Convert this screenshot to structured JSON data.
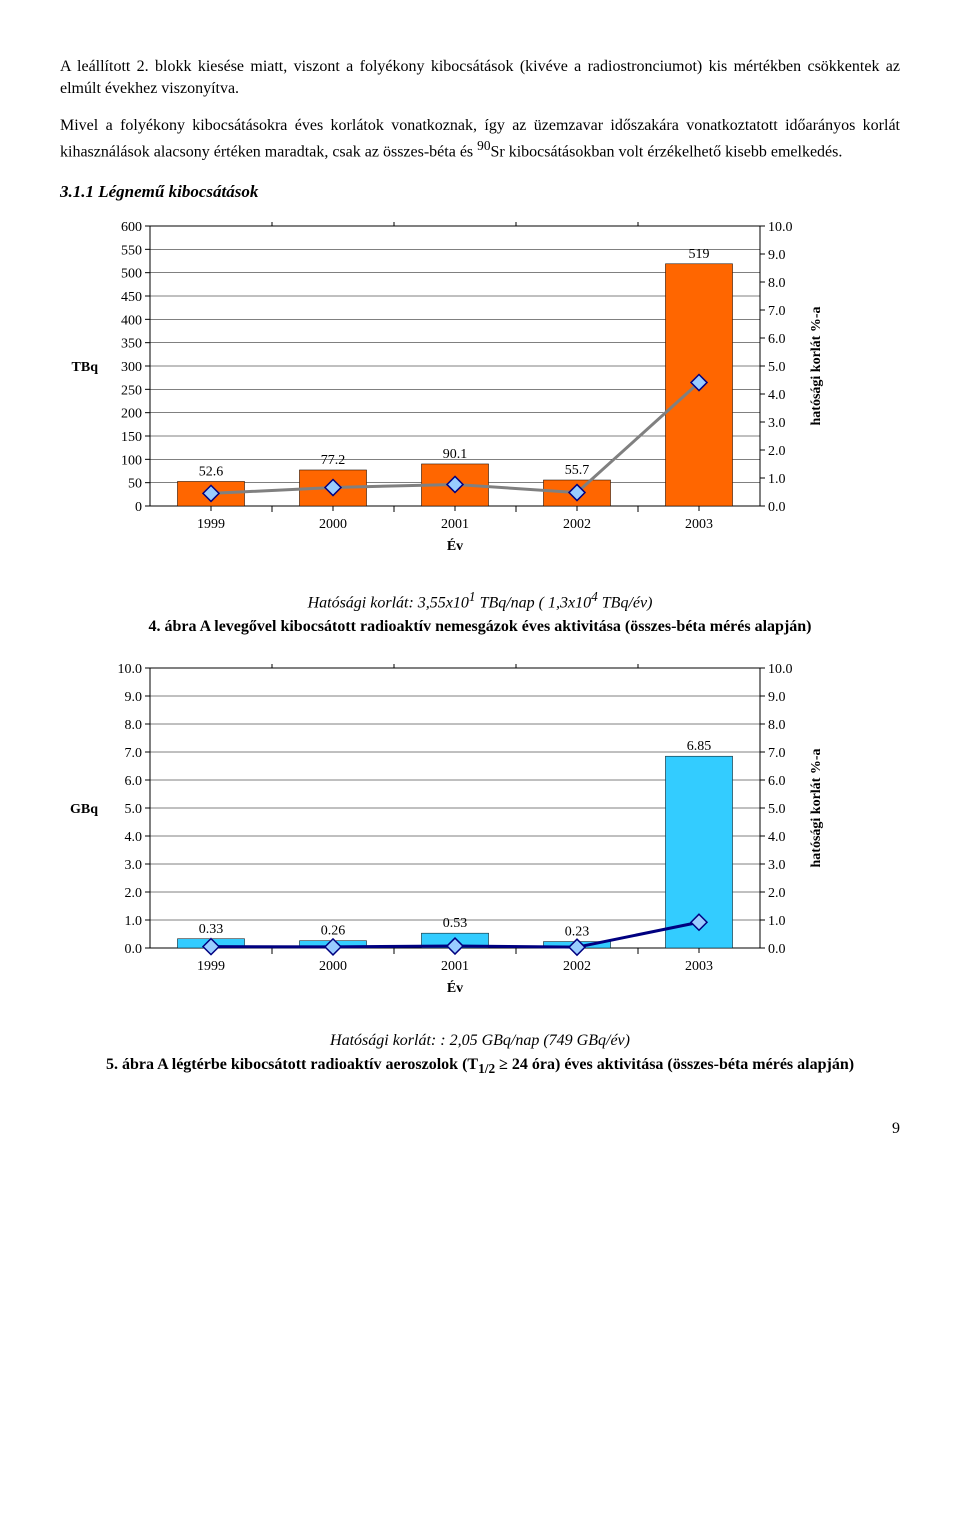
{
  "para1": "A leállított 2. blokk kiesése miatt, viszont a folyékony kibocsátások (kivéve a radiostronciumot) kis mértékben csökkentek az elmúlt évekhez viszonyítva.",
  "para2_pre": "Mivel a folyékony kibocsátásokra éves korlátok vonatkoznak, így az üzemzavar időszakára vonatkoztatott időarányos korlát kihasználások alacsony értéken maradtak, csak az összes-béta és ",
  "para2_sup": "90",
  "para2_post": "Sr kibocsátásokban volt érzékelhető kisebb emelkedés.",
  "section_heading": "3.1.1  Légnemű kibocsátások",
  "chart1": {
    "type": "bar+line",
    "y1_label": "TBq",
    "y2_label": "hatósági korlát %-a",
    "x_label": "Év",
    "categories": [
      "1999",
      "2000",
      "2001",
      "2002",
      "2003"
    ],
    "values": [
      52.6,
      77.2,
      90.1,
      55.7,
      519
    ],
    "value_labels": [
      "52.6",
      "77.2",
      "90.1",
      "55.7",
      "519"
    ],
    "percent": [
      0.45,
      0.66,
      0.77,
      0.48,
      4.41
    ],
    "y1_ticks": [
      0,
      50,
      100,
      150,
      200,
      250,
      300,
      350,
      400,
      450,
      500,
      550,
      600
    ],
    "y2_ticks": [
      "0.0",
      "1.0",
      "2.0",
      "3.0",
      "4.0",
      "5.0",
      "6.0",
      "7.0",
      "8.0",
      "9.0",
      "10.0"
    ],
    "y1_max": 600,
    "y2_max": 10.0,
    "bar_color": "#ff6600",
    "line_color": "#808080",
    "marker_color": "#99ccff",
    "marker_border": "#000080",
    "plot_bg": "#ffffff",
    "grid_color": "#000000",
    "axis_color": "#000000",
    "fontsize_axis": 14,
    "fontsize_datalabel": 14
  },
  "caption1_limit_pre": "Hatósági korlát: 3,55x10",
  "caption1_limit_sup1": "1",
  "caption1_limit_mid": " TBq/nap  ( 1,3x10",
  "caption1_limit_sup2": "4",
  "caption1_limit_post": " TBq/év)",
  "caption1_title": "4. ábra  A levegővel kibocsátott radioaktív nemesgázok éves aktivitása (összes-béta mérés alapján)",
  "chart2": {
    "type": "bar+line",
    "y1_label": "GBq",
    "y2_label": "hatósági korlát %-a",
    "x_label": "Év",
    "categories": [
      "1999",
      "2000",
      "2001",
      "2002",
      "2003"
    ],
    "values": [
      0.33,
      0.26,
      0.53,
      0.23,
      6.85
    ],
    "value_labels": [
      "0.33",
      "0.26",
      "0.53",
      "0.23",
      "6.85"
    ],
    "percent": [
      0.05,
      0.04,
      0.07,
      0.03,
      0.92
    ],
    "y1_ticks": [
      "0.0",
      "1.0",
      "2.0",
      "3.0",
      "4.0",
      "5.0",
      "6.0",
      "7.0",
      "8.0",
      "9.0",
      "10.0"
    ],
    "y2_ticks": [
      "0.0",
      "1.0",
      "2.0",
      "3.0",
      "4.0",
      "5.0",
      "6.0",
      "7.0",
      "8.0",
      "9.0",
      "10.0"
    ],
    "y1_max": 10.0,
    "y2_max": 10.0,
    "bar_color": "#33ccff",
    "line_color": "#000080",
    "marker_color": "#99ccff",
    "marker_border": "#000080",
    "plot_bg": "#ffffff",
    "grid_color": "#000000",
    "axis_color": "#000000",
    "fontsize_axis": 14,
    "fontsize_datalabel": 14
  },
  "caption2_limit": "Hatósági korlát: : 2,05 GBq/nap (749 GBq/év)",
  "caption2_title_pre": "5. ábra  A légtérbe kibocsátott radioaktív aeroszolok (T",
  "caption2_title_sub": "1/2",
  "caption2_title_post": " ≥ 24 óra) éves aktivitása (összes-béta mérés alapján)",
  "page_number": "9"
}
